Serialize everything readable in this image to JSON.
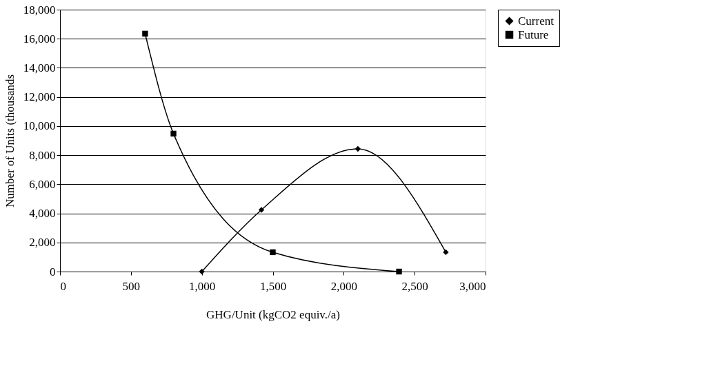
{
  "chart_data": {
    "type": "line",
    "xlabel": "GHG/Unit (kgCO2 equiv./a)",
    "ylabel": "Number of Units (thousands",
    "xlim": [
      0,
      3000
    ],
    "xticks": [
      {
        "value": 0,
        "label": "0"
      },
      {
        "value": 500,
        "label": "500"
      },
      {
        "value": 1000,
        "label": "1,000"
      },
      {
        "value": 1500,
        "label": "1,500"
      },
      {
        "value": 2000,
        "label": "2,000"
      },
      {
        "value": 2500,
        "label": "2,500"
      },
      {
        "value": 3000,
        "label": "3,000"
      }
    ],
    "ylim": [
      0,
      18000
    ],
    "yticks": [
      {
        "value": 0,
        "label": "0"
      },
      {
        "value": 2000,
        "label": "2,000"
      },
      {
        "value": 4000,
        "label": "4,000"
      },
      {
        "value": 6000,
        "label": "6,000"
      },
      {
        "value": 8000,
        "label": "8,000"
      },
      {
        "value": 10000,
        "label": "10,000"
      },
      {
        "value": 12000,
        "label": "12,000"
      },
      {
        "value": 14000,
        "label": "14,000"
      },
      {
        "value": 16000,
        "label": "16,000"
      },
      {
        "value": 18000,
        "label": "18,000"
      }
    ],
    "grid": "y",
    "legend": "right",
    "series": [
      {
        "name": "Current",
        "color": "#000000",
        "marker": "diamond",
        "line_style": "solid",
        "x": [
          1000,
          1420,
          2100,
          2720
        ],
        "values": [
          0,
          4240,
          8430,
          1330
        ]
      },
      {
        "name": "Future",
        "color": "#000000",
        "marker": "square",
        "line_style": "solid",
        "x": [
          600,
          800,
          1500,
          2390
        ],
        "values": [
          16350,
          9480,
          1330,
          0
        ]
      }
    ]
  }
}
